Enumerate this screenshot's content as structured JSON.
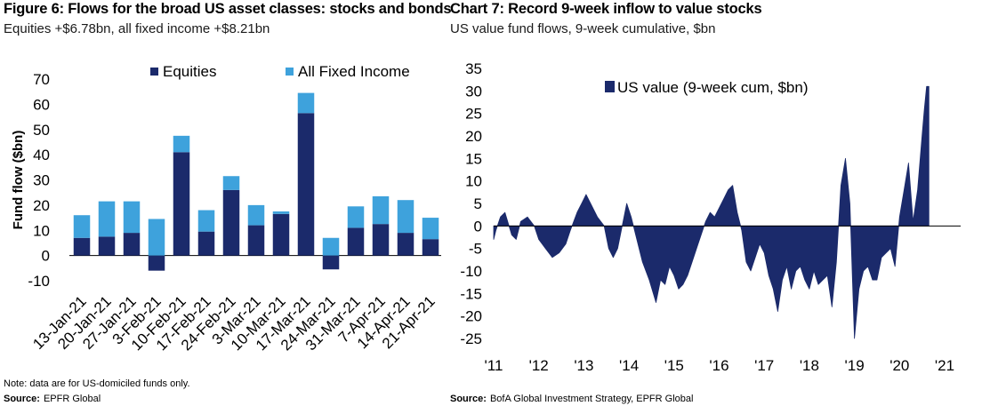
{
  "left": {
    "title": "Figure 6: Flows for the broad US asset classes: stocks and bonds",
    "subtitle": "Equities +$6.78bn, all fixed income +$8.21bn",
    "note": "Note: data are for US-domiciled funds  only.",
    "source_label": "Source:",
    "source_text": "EPFR Global"
  },
  "right": {
    "title": "Chart 7: Record 9-week inflow to value stocks",
    "subtitle": "US value fund flows, 9-week cumulative, $bn",
    "source_label": "Source:",
    "source_text": "BofA Global Investment Strategy, EPFR Global"
  },
  "colors": {
    "equities": "#1b2a6b",
    "fixed_income": "#3ea2dc",
    "value_series": "#1b2a6b"
  },
  "chart_data": [
    {
      "type": "bar",
      "stacked": true,
      "title": "Figure 6: Flows for the broad US asset classes: stocks and bonds",
      "ylabel": "Fund flow ($bn)",
      "xlabel": "",
      "ylim": [
        -10,
        70
      ],
      "yticks": [
        -10,
        0,
        10,
        20,
        30,
        40,
        50,
        60,
        70
      ],
      "legend": "top",
      "categories": [
        "13-Jan-21",
        "20-Jan-21",
        "27-Jan-21",
        "3-Feb-21",
        "10-Feb-21",
        "17-Feb-21",
        "24-Feb-21",
        "3-Mar-21",
        "10-Mar-21",
        "17-Mar-21",
        "24-Mar-21",
        "31-Mar-21",
        "7-Apr-21",
        "14-Apr-21",
        "21-Apr-21"
      ],
      "series": [
        {
          "name": "Equities",
          "values": [
            7,
            7.5,
            9,
            -6,
            41,
            9.5,
            26,
            12,
            16.5,
            56.5,
            -5.5,
            11,
            12.5,
            9,
            6.5
          ]
        },
        {
          "name": "All Fixed Income",
          "values": [
            9,
            14,
            12.5,
            14.5,
            6.5,
            8.5,
            5.5,
            8,
            1,
            8,
            7,
            8.5,
            11,
            13,
            8.5
          ]
        }
      ]
    },
    {
      "type": "area",
      "title": "Chart 7: Record 9-week inflow to value stocks",
      "xlabel": "",
      "ylabel": "",
      "ylim": [
        -25,
        35
      ],
      "yticks": [
        -25,
        -20,
        -15,
        -10,
        -5,
        0,
        5,
        10,
        15,
        20,
        25,
        30,
        35
      ],
      "xlim": [
        2011,
        2021
      ],
      "xtick_labels": [
        "'11",
        "'12",
        "'13",
        "'14",
        "'15",
        "'16",
        "'17",
        "'18",
        "'19",
        "'20",
        "'21"
      ],
      "legend": "top-center",
      "series": [
        {
          "name": "US value (9-week cum, $bn)",
          "x": [
            2011.0,
            2011.05,
            2011.15,
            2011.25,
            2011.4,
            2011.5,
            2011.6,
            2011.75,
            2011.9,
            2012.0,
            2012.15,
            2012.3,
            2012.45,
            2012.6,
            2012.7,
            2012.85,
            2012.95,
            2013.05,
            2013.15,
            2013.3,
            2013.45,
            2013.55,
            2013.65,
            2013.75,
            2013.85,
            2013.95,
            2014.05,
            2014.15,
            2014.3,
            2014.45,
            2014.6,
            2014.7,
            2014.8,
            2014.9,
            2015.0,
            2015.1,
            2015.2,
            2015.3,
            2015.4,
            2015.5,
            2015.6,
            2015.7,
            2015.8,
            2015.9,
            2016.0,
            2016.1,
            2016.2,
            2016.3,
            2016.4,
            2016.5,
            2016.6,
            2016.7,
            2016.8,
            2016.9,
            2017.0,
            2017.1,
            2017.2,
            2017.3,
            2017.4,
            2017.5,
            2017.6,
            2017.7,
            2017.8,
            2017.9,
            2018.0,
            2018.1,
            2018.2,
            2018.3,
            2018.4,
            2018.5,
            2018.6,
            2018.7,
            2018.8,
            2018.9,
            2019.0,
            2019.1,
            2019.2,
            2019.3,
            2019.4,
            2019.5,
            2019.6,
            2019.7,
            2019.8,
            2019.9,
            2020.0,
            2020.1,
            2020.2,
            2020.3,
            2020.4,
            2020.5,
            2020.55,
            2020.6,
            2020.65
          ],
          "values": [
            -3,
            -1,
            2,
            3,
            -2,
            -3,
            1,
            2,
            0,
            -3,
            -5,
            -7,
            -6,
            -4,
            -1,
            3,
            5,
            7,
            5,
            2,
            0,
            -5,
            -7,
            -5,
            0,
            5,
            2,
            -2,
            -8,
            -12,
            -17,
            -12,
            -13,
            -9,
            -11,
            -14,
            -13,
            -11,
            -8,
            -5,
            -2,
            1,
            3,
            2,
            4,
            6,
            8,
            9,
            3,
            -1,
            -8,
            -10,
            -7,
            -4,
            -6,
            -11,
            -14,
            -19,
            -12,
            -9,
            -14,
            -10,
            -9,
            -12,
            -14,
            -10,
            -13,
            -12,
            -11,
            -18,
            -8,
            9,
            15,
            5,
            -25,
            -14,
            -10,
            -9,
            -12,
            -12,
            -7,
            -6,
            -5,
            -9,
            2,
            8,
            14,
            1,
            8,
            20,
            26,
            31,
            31
          ]
        }
      ]
    }
  ]
}
